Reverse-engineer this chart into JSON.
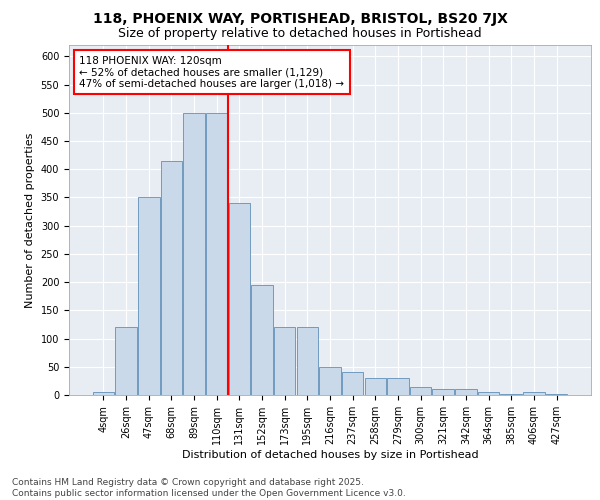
{
  "title1": "118, PHOENIX WAY, PORTISHEAD, BRISTOL, BS20 7JX",
  "title2": "Size of property relative to detached houses in Portishead",
  "xlabel": "Distribution of detached houses by size in Portishead",
  "ylabel": "Number of detached properties",
  "categories": [
    "4sqm",
    "26sqm",
    "47sqm",
    "68sqm",
    "89sqm",
    "110sqm",
    "131sqm",
    "152sqm",
    "173sqm",
    "195sqm",
    "216sqm",
    "237sqm",
    "258sqm",
    "279sqm",
    "300sqm",
    "321sqm",
    "342sqm",
    "364sqm",
    "385sqm",
    "406sqm",
    "427sqm"
  ],
  "bar_values": [
    5,
    120,
    350,
    415,
    500,
    500,
    340,
    195,
    120,
    120,
    50,
    40,
    30,
    30,
    15,
    10,
    10,
    5,
    2,
    5,
    2
  ],
  "bar_color": "#c9d9e9",
  "bar_edge_color": "#6090b8",
  "bg_color": "#e8edf4",
  "grid_color": "#ffffff",
  "vline_x_idx": 5,
  "vline_color": "red",
  "annotation_text": "118 PHOENIX WAY: 120sqm\n← 52% of detached houses are smaller (1,129)\n47% of semi-detached houses are larger (1,018) →",
  "annotation_box_color": "white",
  "annotation_box_edge_color": "red",
  "footnote": "Contains HM Land Registry data © Crown copyright and database right 2025.\nContains public sector information licensed under the Open Government Licence v3.0.",
  "ylim": [
    0,
    620
  ],
  "yticks": [
    0,
    50,
    100,
    150,
    200,
    250,
    300,
    350,
    400,
    450,
    500,
    550,
    600
  ],
  "title1_fontsize": 10,
  "title2_fontsize": 9,
  "xlabel_fontsize": 8,
  "ylabel_fontsize": 8,
  "tick_fontsize": 7,
  "annotation_fontsize": 7.5,
  "footnote_fontsize": 6.5
}
